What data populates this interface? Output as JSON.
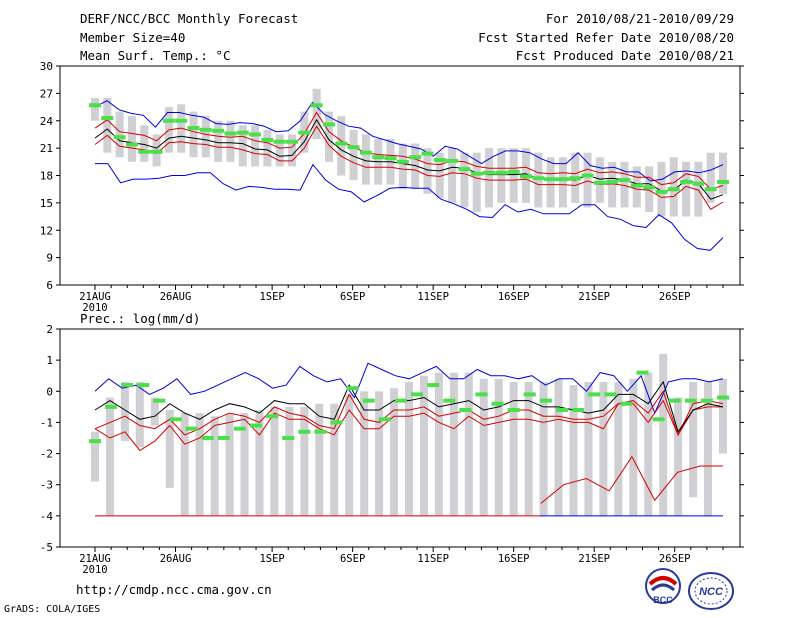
{
  "header": {
    "title": "DERF/NCC/BCC Monthly Forecast",
    "member_size": "Member Size=40",
    "variable": "Mean Surf. Temp.: °C",
    "period": "For 2010/08/21-2010/09/29",
    "started": "Fcst Started Refer Date 2010/08/20",
    "produced": "Fcst Produced Date 2010/08/21"
  },
  "prec_label": "Prec.: log(mm/d)",
  "footer": {
    "url": "http://cmdp.ncc.cma.gov.cn",
    "grads": "GrADS: COLA/IGES"
  },
  "logos": {
    "bcc": "BCC",
    "ncc": "NCC"
  },
  "colors": {
    "box": "#d0d0d4",
    "obs": "#4be04b",
    "mean": "#000000",
    "spread": "#d40000",
    "range": "#0000dd"
  },
  "chart_data": [
    {
      "type": "box-plume",
      "title": "Mean Surf. Temp.: °C",
      "ylim": [
        6,
        30
      ],
      "yticks": [
        6,
        9,
        12,
        15,
        18,
        21,
        24,
        27,
        30
      ],
      "x_tick_labels": [
        "21AUG",
        "26AUG",
        "1SEP",
        "6SEP",
        "11SEP",
        "16SEP",
        "21SEP",
        "26SEP"
      ],
      "x_tick_days": [
        1,
        6,
        12,
        17,
        22,
        27,
        32,
        37
      ],
      "x_year_label": "2010",
      "days": 40,
      "series": {
        "max": [
          25.5,
          26.2,
          25.2,
          24.8,
          24.6,
          23.3,
          24.9,
          24.9,
          24.6,
          24.4,
          23.7,
          23.6,
          23.8,
          23.7,
          23.4,
          22.8,
          22.9,
          24.0,
          26.0,
          24.7,
          24.0,
          23.4,
          23.2,
          22.3,
          21.9,
          21.5,
          21.2,
          20.9,
          20.1,
          21.2,
          20.9,
          20.1,
          19.3,
          20.1,
          20.7,
          20.7,
          20.5,
          19.8,
          19.3,
          19.3,
          20.5,
          19.1,
          18.8,
          18.9,
          18.4,
          18.4,
          17.4,
          17.6,
          18.4,
          18.5,
          18.3,
          18.6,
          19.2
        ],
        "mean": [
          22.1,
          23.1,
          21.8,
          21.6,
          21.4,
          21.0,
          22.1,
          22.3,
          22.1,
          21.9,
          21.6,
          21.6,
          21.5,
          20.9,
          20.8,
          20.1,
          20.2,
          21.7,
          24.1,
          21.9,
          20.8,
          20.1,
          19.6,
          19.5,
          19.5,
          19.3,
          19.1,
          18.6,
          18.5,
          18.9,
          18.8,
          18.3,
          18.1,
          18.1,
          18.1,
          18.2,
          17.6,
          17.5,
          17.6,
          17.5,
          18.0,
          17.6,
          17.7,
          17.5,
          17.1,
          17.1,
          16.3,
          16.4,
          17.5,
          17.1,
          15.4,
          15.9
        ],
        "p75": [
          23.2,
          24.1,
          22.8,
          22.6,
          22.4,
          21.8,
          23.0,
          23.2,
          22.8,
          22.5,
          22.3,
          22.2,
          22.3,
          21.8,
          21.6,
          21.0,
          21.1,
          22.6,
          24.9,
          22.8,
          21.8,
          21.1,
          20.5,
          20.3,
          20.2,
          20.1,
          19.8,
          19.3,
          19.2,
          19.6,
          19.5,
          19.0,
          18.8,
          18.8,
          18.8,
          18.9,
          18.3,
          18.2,
          18.3,
          18.2,
          18.7,
          18.3,
          18.4,
          18.2,
          17.8,
          17.8,
          17.0,
          17.2,
          18.2,
          17.9,
          16.5,
          16.9
        ],
        "p25": [
          21.4,
          22.4,
          21.2,
          21.0,
          20.8,
          20.4,
          21.6,
          21.7,
          21.5,
          21.4,
          21.1,
          21.1,
          20.8,
          20.4,
          20.3,
          19.6,
          19.6,
          21.0,
          23.4,
          21.3,
          20.1,
          19.4,
          18.9,
          18.9,
          18.9,
          18.7,
          18.6,
          18.0,
          17.9,
          18.3,
          18.2,
          17.7,
          17.5,
          17.5,
          17.5,
          17.6,
          17.0,
          17.0,
          17.0,
          16.9,
          17.4,
          17.0,
          17.1,
          16.9,
          16.5,
          16.4,
          15.6,
          15.7,
          16.8,
          16.4,
          14.3,
          15.1
        ],
        "min": [
          19.3,
          19.3,
          17.2,
          17.6,
          17.6,
          17.7,
          18.0,
          18.0,
          18.3,
          18.3,
          17.1,
          16.4,
          16.8,
          16.7,
          16.5,
          16.5,
          16.4,
          19.2,
          17.5,
          16.5,
          16.2,
          15.1,
          15.8,
          16.6,
          16.7,
          16.6,
          16.6,
          15.4,
          14.9,
          14.3,
          13.5,
          13.4,
          14.8,
          14.0,
          14.3,
          13.8,
          13.8,
          13.8,
          14.8,
          14.8,
          13.5,
          13.2,
          12.5,
          12.3,
          13.7,
          12.8,
          11.0,
          10.0,
          9.8,
          11.2
        ],
        "box_hi": [
          26.5,
          26.5,
          25.0,
          24.5,
          23.5,
          22.5,
          25.5,
          25.8,
          25.0,
          24.5,
          24.0,
          24.0,
          23.5,
          23.5,
          23.0,
          22.5,
          22.5,
          25.0,
          27.5,
          25.0,
          24.5,
          23.0,
          22.5,
          22.0,
          22.0,
          21.5,
          21.5,
          21.0,
          20.5,
          21.0,
          20.5,
          20.5,
          21.0,
          21.0,
          21.0,
          21.0,
          20.5,
          20.0,
          20.0,
          20.5,
          20.5,
          20.0,
          19.5,
          19.5,
          19.0,
          19.0,
          19.5,
          20.0,
          19.5,
          19.5,
          20.5,
          20.5
        ],
        "box_lo": [
          24.0,
          20.5,
          20.0,
          19.5,
          19.5,
          19.0,
          20.5,
          20.5,
          20.0,
          20.0,
          19.5,
          19.5,
          19.0,
          19.0,
          19.0,
          19.0,
          19.0,
          20.5,
          22.0,
          19.5,
          18.0,
          17.5,
          17.0,
          17.0,
          17.0,
          16.5,
          16.5,
          16.0,
          15.5,
          15.0,
          14.5,
          14.0,
          14.5,
          15.0,
          15.0,
          15.0,
          14.5,
          14.5,
          14.5,
          15.0,
          14.5,
          15.0,
          14.5,
          14.5,
          14.5,
          14.0,
          13.5,
          13.5,
          13.5,
          13.5,
          15.0,
          16.0
        ],
        "obs": [
          25.7,
          24.3,
          22.2,
          21.4,
          20.6,
          20.6,
          24.0,
          24.0,
          23.2,
          23.0,
          22.9,
          22.6,
          22.7,
          22.5,
          21.9,
          21.7,
          21.7,
          22.7,
          25.7,
          23.6,
          21.5,
          21.1,
          20.5,
          20.0,
          19.9,
          19.5,
          20.0,
          20.4,
          19.7,
          19.6,
          18.7,
          18.2,
          18.3,
          18.3,
          18.4,
          17.9,
          17.7,
          17.6,
          17.6,
          17.7,
          18.0,
          17.2,
          17.3,
          17.5,
          16.9,
          16.7,
          16.2,
          16.5,
          17.3,
          17.1,
          16.5,
          17.3
        ]
      }
    },
    {
      "type": "box-plume",
      "title": "Prec.: log(mm/d)",
      "ylim": [
        -5,
        2
      ],
      "yticks": [
        -5,
        -4,
        -3,
        -2,
        -1,
        0,
        1,
        2
      ],
      "x_tick_labels": [
        "21AUG",
        "26AUG",
        "1SEP",
        "6SEP",
        "11SEP",
        "16SEP",
        "21SEP",
        "26SEP"
      ],
      "x_tick_days": [
        1,
        6,
        12,
        17,
        22,
        27,
        32,
        37
      ],
      "x_year_label": "2010",
      "days": 40,
      "series": {
        "max": [
          0.0,
          0.4,
          0.1,
          0.2,
          -0.1,
          0.1,
          0.4,
          -0.1,
          0.0,
          0.2,
          0.4,
          0.6,
          0.4,
          0.1,
          0.2,
          0.8,
          0.5,
          0.3,
          0.4,
          -0.2,
          0.9,
          0.7,
          0.5,
          0.4,
          0.6,
          0.8,
          0.4,
          0.4,
          0.7,
          0.5,
          0.5,
          0.4,
          0.5,
          0.2,
          0.4,
          0.4,
          0.0,
          0.6,
          0.5,
          0.0,
          0.5,
          -0.7,
          0.3,
          0.4,
          0.4,
          0.3,
          0.4
        ],
        "mean": [
          -0.6,
          -0.3,
          -0.6,
          -0.9,
          -0.8,
          -0.4,
          -0.7,
          -0.9,
          -0.6,
          -0.4,
          -0.5,
          -0.7,
          -0.3,
          -0.4,
          -0.4,
          -0.8,
          -0.9,
          0.2,
          -0.6,
          -0.6,
          -0.3,
          -0.3,
          -0.2,
          -0.5,
          -0.4,
          -0.3,
          -0.6,
          -0.5,
          -0.3,
          -0.3,
          -0.5,
          -0.5,
          -0.6,
          -0.7,
          -0.6,
          -0.1,
          -0.1,
          -0.4,
          0.3,
          -1.3,
          -0.6,
          -0.4,
          -0.5
        ],
        "spread_hi": [
          -1.2,
          -1.0,
          -0.8,
          -1.1,
          -1.2,
          -0.9,
          -1.4,
          -1.2,
          -0.9,
          -0.7,
          -0.8,
          -1.0,
          -0.5,
          -0.7,
          -0.8,
          -1.1,
          -1.2,
          -0.1,
          -0.9,
          -1.0,
          -0.6,
          -0.6,
          -0.5,
          -0.8,
          -0.7,
          -0.6,
          -0.9,
          -0.8,
          -0.6,
          -0.6,
          -0.8,
          -0.8,
          -0.9,
          -0.9,
          -0.8,
          -0.4,
          -0.3,
          -0.7,
          0.0,
          -1.4,
          -0.4,
          -0.3,
          -0.4
        ],
        "spread_lo": [
          -1.2,
          -1.5,
          -1.3,
          -1.9,
          -1.6,
          -1.1,
          -1.7,
          -1.5,
          -1.1,
          -1.0,
          -0.9,
          -1.4,
          -0.7,
          -0.9,
          -0.9,
          -1.2,
          -1.4,
          -0.6,
          -1.2,
          -1.2,
          -0.8,
          -0.8,
          -0.7,
          -1.0,
          -1.2,
          -0.8,
          -1.1,
          -1.0,
          -0.9,
          -0.9,
          -1.0,
          -0.9,
          -1.0,
          -1.0,
          -1.2,
          -0.4,
          -0.4,
          -1.0,
          -0.3,
          -1.4,
          -0.6,
          -0.5,
          -0.5
        ],
        "lower_tail": [
          -3.6,
          -3.0,
          -2.8,
          -3.2,
          -2.1,
          -3.5,
          -2.6,
          -2.4,
          -2.4
        ],
        "box_hi": [
          -1.3,
          -0.2,
          0.3,
          0.3,
          -0.2,
          -0.6,
          -0.7,
          -0.7,
          -0.8,
          -0.7,
          -0.7,
          -0.6,
          -0.5,
          -0.5,
          -0.5,
          -0.4,
          -0.4,
          -0.1,
          0.0,
          0.0,
          0.1,
          0.3,
          0.5,
          0.6,
          0.6,
          0.6,
          0.4,
          0.4,
          0.3,
          0.3,
          0.3,
          0.4,
          0.2,
          0.3,
          0.3,
          0.3,
          0.4,
          0.6,
          1.2,
          -0.2,
          0.3,
          0.3,
          0.4
        ],
        "box_lo": [
          -2.9,
          -4.0,
          -1.6,
          -1.8,
          -1.1,
          -3.1,
          -4.0,
          -4.0,
          -4.0,
          -4.0,
          -4.0,
          -4.0,
          -4.0,
          -4.0,
          -4.0,
          -4.0,
          -4.0,
          -4.0,
          -4.0,
          -4.0,
          -4.0,
          -4.0,
          -4.0,
          -4.0,
          -4.0,
          -4.0,
          -4.0,
          -4.0,
          -4.0,
          -4.0,
          -4.0,
          -4.0,
          -4.0,
          -4.0,
          -4.0,
          -4.0,
          -4.0,
          -4.0,
          -4.0,
          -4.0,
          -3.4,
          -4.0,
          -2.0
        ],
        "obs": [
          -1.6,
          -0.5,
          0.2,
          0.2,
          -0.3,
          -0.9,
          -1.2,
          -1.5,
          -1.5,
          -1.2,
          -1.1,
          -0.8,
          -1.5,
          -1.3,
          -1.3,
          -1.0,
          0.1,
          -0.3,
          -0.9,
          -0.3,
          -0.1,
          0.2,
          -0.3,
          -0.6,
          -0.1,
          -0.4,
          -0.6,
          -0.1,
          -0.3,
          -0.6,
          -0.6,
          -0.1,
          -0.1,
          -0.4,
          0.6,
          -0.9,
          -0.3,
          -0.3,
          -0.3,
          -0.2
        ]
      }
    }
  ]
}
